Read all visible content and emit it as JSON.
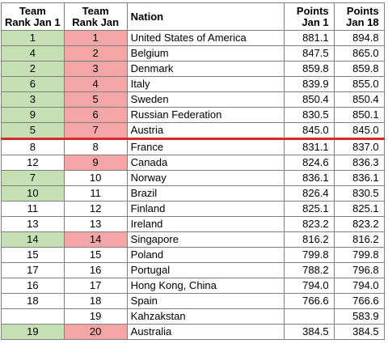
{
  "headers": {
    "rank_jan1_line1": "Team",
    "rank_jan1_line2": "Rank Jan 1",
    "rank_jan_line1": "Team",
    "rank_jan_line2": "Rank Jan",
    "nation": "Nation",
    "points_jan1_line1": "Points",
    "points_jan1_line2": "Jan 1",
    "points_jan18_line1": "Points",
    "points_jan18_line2": "Jan 18"
  },
  "colors": {
    "green_highlight": "#c6e0b4",
    "red_highlight": "#f4a6a6",
    "cutoff_line": "#d42a2a",
    "grid": "#7f7f7f"
  },
  "cutoff_after_row": 7,
  "rows": [
    {
      "rank_jan1": "1",
      "rank_jan": "1",
      "nation": "United States of America",
      "points_jan1": "881.1",
      "points_jan18": "894.8",
      "jan1_color": "green",
      "jan_color": "red"
    },
    {
      "rank_jan1": "4",
      "rank_jan": "2",
      "nation": "Belgium",
      "points_jan1": "847.5",
      "points_jan18": "865.0",
      "jan1_color": "green",
      "jan_color": "red"
    },
    {
      "rank_jan1": "2",
      "rank_jan": "3",
      "nation": "Denmark",
      "points_jan1": "859.8",
      "points_jan18": "859.8",
      "jan1_color": "green",
      "jan_color": "red"
    },
    {
      "rank_jan1": "6",
      "rank_jan": "4",
      "nation": "Italy",
      "points_jan1": "839.9",
      "points_jan18": "855.0",
      "jan1_color": "green",
      "jan_color": "red"
    },
    {
      "rank_jan1": "3",
      "rank_jan": "5",
      "nation": "Sweden",
      "points_jan1": "850.4",
      "points_jan18": "850.4",
      "jan1_color": "green",
      "jan_color": "red"
    },
    {
      "rank_jan1": "9",
      "rank_jan": "6",
      "nation": "Russian Federation",
      "points_jan1": "830.5",
      "points_jan18": "850.1",
      "jan1_color": "green",
      "jan_color": "red"
    },
    {
      "rank_jan1": "5",
      "rank_jan": "7",
      "nation": "Austria",
      "points_jan1": "845.0",
      "points_jan18": "845.0",
      "jan1_color": "green",
      "jan_color": "red"
    },
    {
      "rank_jan1": "8",
      "rank_jan": "8",
      "nation": "France",
      "points_jan1": "831.1",
      "points_jan18": "837.0",
      "jan1_color": "",
      "jan_color": ""
    },
    {
      "rank_jan1": "12",
      "rank_jan": "9",
      "nation": "Canada",
      "points_jan1": "824.6",
      "points_jan18": "836.3",
      "jan1_color": "",
      "jan_color": "red"
    },
    {
      "rank_jan1": "7",
      "rank_jan": "10",
      "nation": "Norway",
      "points_jan1": "836.1",
      "points_jan18": "836.1",
      "jan1_color": "green",
      "jan_color": ""
    },
    {
      "rank_jan1": "10",
      "rank_jan": "11",
      "nation": "Brazil",
      "points_jan1": "826.4",
      "points_jan18": "830.5",
      "jan1_color": "green",
      "jan_color": ""
    },
    {
      "rank_jan1": "11",
      "rank_jan": "12",
      "nation": "Finland",
      "points_jan1": "825.1",
      "points_jan18": "825.1",
      "jan1_color": "",
      "jan_color": ""
    },
    {
      "rank_jan1": "13",
      "rank_jan": "13",
      "nation": "Ireland",
      "points_jan1": "823.2",
      "points_jan18": "823.2",
      "jan1_color": "",
      "jan_color": ""
    },
    {
      "rank_jan1": "14",
      "rank_jan": "14",
      "nation": "Singapore",
      "points_jan1": "816.2",
      "points_jan18": "816.2",
      "jan1_color": "green",
      "jan_color": "red"
    },
    {
      "rank_jan1": "15",
      "rank_jan": "15",
      "nation": "Poland",
      "points_jan1": "799.8",
      "points_jan18": "799.8",
      "jan1_color": "",
      "jan_color": ""
    },
    {
      "rank_jan1": "17",
      "rank_jan": "16",
      "nation": "Portugal",
      "points_jan1": "788.2",
      "points_jan18": "796.8",
      "jan1_color": "",
      "jan_color": ""
    },
    {
      "rank_jan1": "16",
      "rank_jan": "17",
      "nation": "Hong Kong, China",
      "points_jan1": "794.0",
      "points_jan18": "794.0",
      "jan1_color": "",
      "jan_color": ""
    },
    {
      "rank_jan1": "18",
      "rank_jan": "18",
      "nation": "Spain",
      "points_jan1": "766.6",
      "points_jan18": "766.6",
      "jan1_color": "",
      "jan_color": ""
    },
    {
      "rank_jan1": "",
      "rank_jan": "19",
      "nation": "Kahzakstan",
      "points_jan1": "",
      "points_jan18": "583.9",
      "jan1_color": "",
      "jan_color": ""
    },
    {
      "rank_jan1": "19",
      "rank_jan": "20",
      "nation": "Australia",
      "points_jan1": "384.5",
      "points_jan18": "384.5",
      "jan1_color": "green",
      "jan_color": "red"
    }
  ]
}
